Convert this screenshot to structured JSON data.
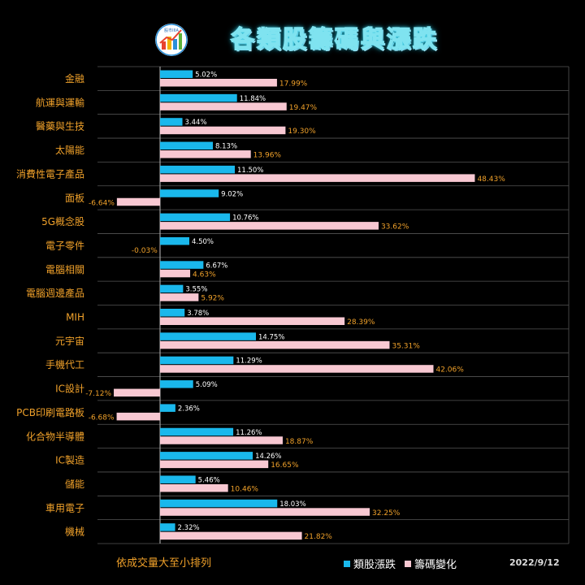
{
  "title": "各類股籌碼與漲跌",
  "logo": {
    "icon": "stock-chart-logo-icon",
    "text": "股市IIIA"
  },
  "footnote": "依成交量大至小排列",
  "date": "2022/9/12",
  "colors": {
    "rise": "#1ab8ec",
    "chip": "#f8c8d2",
    "label": "#f0a12a",
    "grid": "#555555"
  },
  "chart_data": {
    "type": "bar",
    "orientation": "horizontal",
    "categories": [
      "金融",
      "航運與運輸",
      "醫藥與生技",
      "太陽能",
      "消費性電子產品",
      "面板",
      "5G概念股",
      "電子零件",
      "電腦相關",
      "電腦週邊產品",
      "MIH",
      "元宇宙",
      "手機代工",
      "IC設計",
      "PCB印刷電路板",
      "化合物半導體",
      "IC製造",
      "儲能",
      "車用電子",
      "機械"
    ],
    "series": [
      {
        "name": "類股漲跌",
        "values": [
          5.02,
          11.84,
          3.44,
          8.13,
          11.5,
          9.02,
          10.76,
          4.5,
          6.67,
          3.55,
          3.78,
          14.75,
          11.29,
          5.09,
          2.36,
          11.26,
          14.26,
          5.46,
          18.03,
          2.32
        ],
        "labels": [
          "5.02%",
          "11.84%",
          "3.44%",
          "8.13%",
          "11.50%",
          "9.02%",
          "10.76%",
          "4.50%",
          "6.67%",
          "3.55%",
          "3.78%",
          "14.75%",
          "11.29%",
          "5.09%",
          "2.36%",
          "11.26%",
          "14.26%",
          "5.46%",
          "18.03%",
          "2.32%"
        ]
      },
      {
        "name": "籌碼變化",
        "values": [
          17.99,
          19.47,
          19.3,
          13.96,
          48.43,
          -6.64,
          33.62,
          -0.03,
          4.63,
          5.92,
          28.39,
          35.31,
          42.06,
          -7.12,
          -6.68,
          18.87,
          16.65,
          10.46,
          32.25,
          21.82
        ],
        "labels": [
          "17.99%",
          "19.47%",
          "19.30%",
          "13.96%",
          "48.43%",
          "-6.64%",
          "33.62%",
          "-0.03%",
          "4.63%",
          "5.92%",
          "28.39%",
          "35.31%",
          "42.06%",
          "-7.12%",
          "-6.68%",
          "18.87%",
          "16.65%",
          "10.46%",
          "32.25%",
          "21.82%"
        ]
      }
    ],
    "xlim": [
      -13.3,
      53.3
    ],
    "legend_position": "bottom",
    "grid": true
  }
}
